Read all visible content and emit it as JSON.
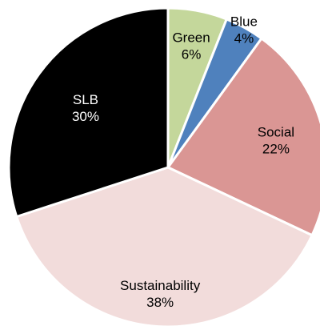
{
  "chart_data": {
    "type": "pie",
    "title": "",
    "start_angle_deg": 0,
    "direction": "clockwise",
    "slices": [
      {
        "label": "Green",
        "value": 6,
        "value_label": "6%",
        "color": "#c4d79b",
        "text_color": "#000000"
      },
      {
        "label": "Blue",
        "value": 4,
        "value_label": "4%",
        "color": "#4f81bd",
        "text_color": "#000000"
      },
      {
        "label": "Social",
        "value": 22,
        "value_label": "22%",
        "color": "#da9694",
        "text_color": "#000000"
      },
      {
        "label": "Sustainability",
        "value": 38,
        "value_label": "38%",
        "color": "#f2dcdb",
        "text_color": "#000000"
      },
      {
        "label": "SLB",
        "value": 30,
        "value_label": "30%",
        "color": "#000000",
        "text_color": "#ffffff"
      }
    ]
  }
}
